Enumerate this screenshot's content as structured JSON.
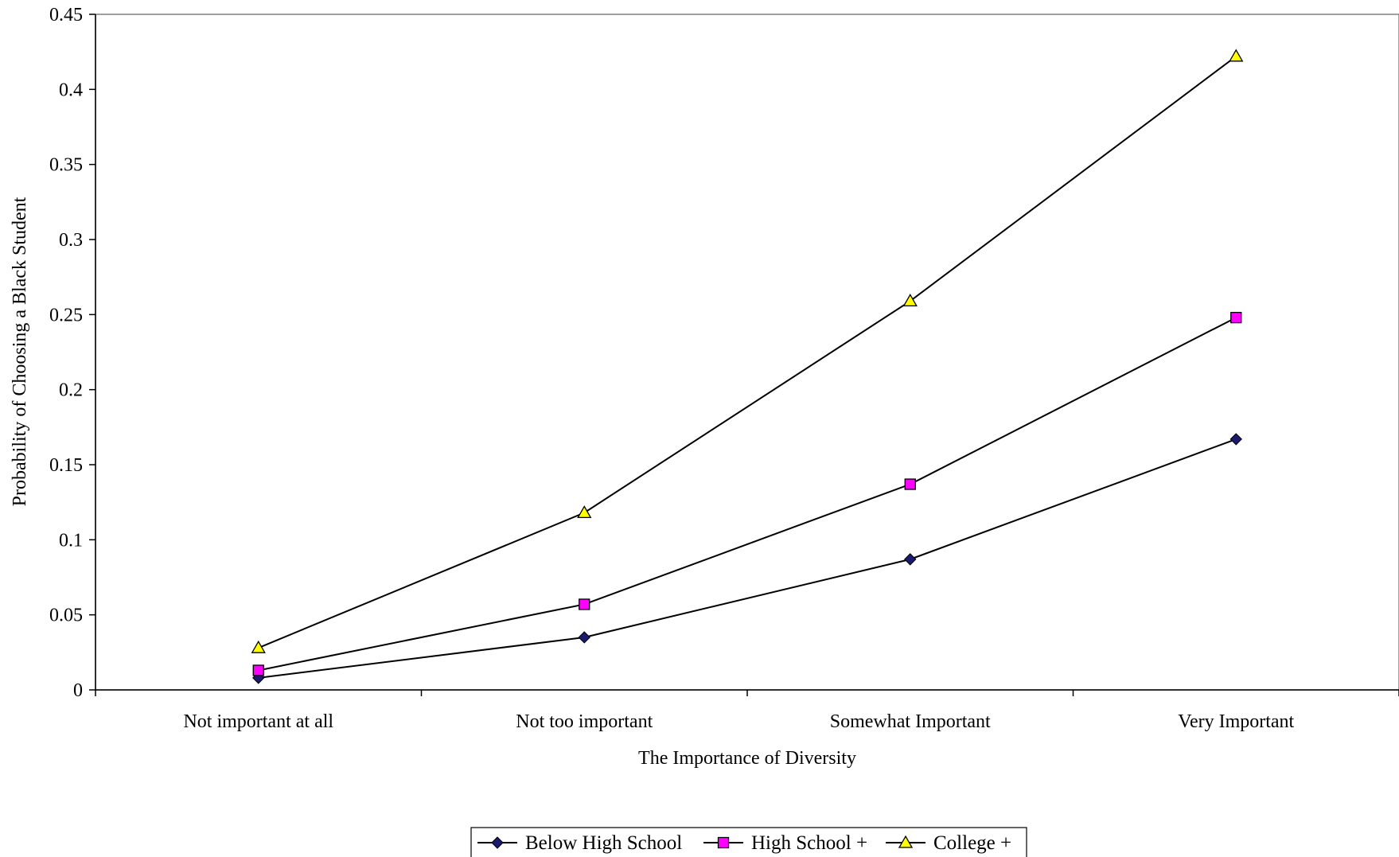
{
  "chart_data": {
    "type": "line",
    "title": "",
    "xlabel": "The Importance of Diversity",
    "ylabel": "Probability of Choosing a Black Student",
    "categories": [
      "Not important at all",
      "Not too important",
      "Somewhat Important",
      "Very Important"
    ],
    "ylim": [
      0,
      0.45
    ],
    "yticks": [
      "0",
      "0.05",
      "0.1",
      "0.15",
      "0.2",
      "0.25",
      "0.3",
      "0.35",
      "0.4",
      "0.45"
    ],
    "grid": false,
    "legend_position": "bottom",
    "series": [
      {
        "name": "Below High School",
        "marker": "diamond",
        "color": "#1a1a6e",
        "values": [
          0.008,
          0.035,
          0.087,
          0.167
        ]
      },
      {
        "name": "High School +",
        "marker": "square",
        "color": "#ff00ff",
        "values": [
          0.013,
          0.057,
          0.137,
          0.248
        ]
      },
      {
        "name": "College +",
        "marker": "triangle",
        "color": "#ffff00",
        "values": [
          0.028,
          0.118,
          0.259,
          0.422
        ]
      }
    ]
  }
}
